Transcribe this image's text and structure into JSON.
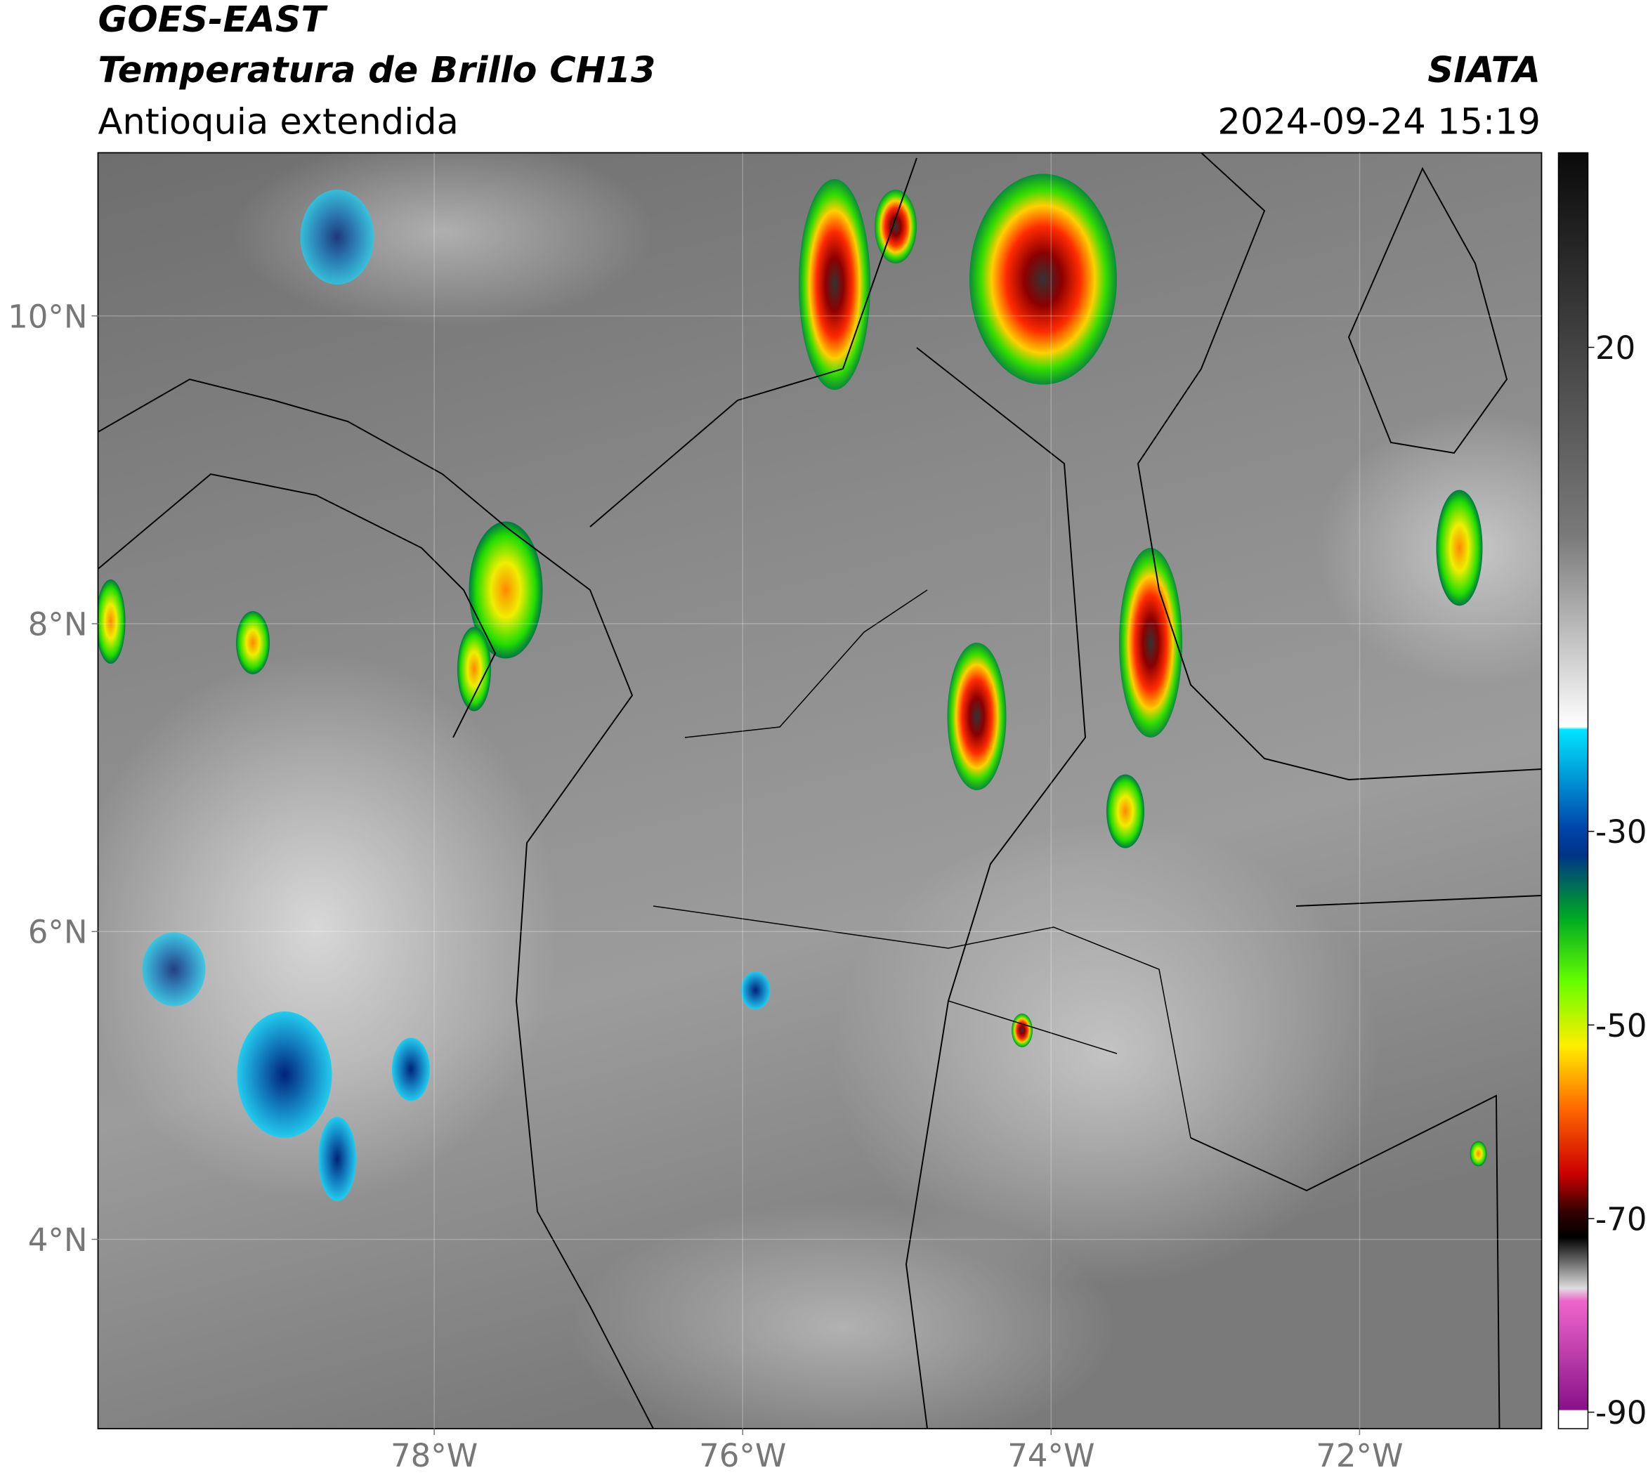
{
  "header": {
    "title": "GOES-EAST",
    "subtitle": "Temperatura de Brillo CH13",
    "region": "Antioquia extendida",
    "source": "SIATA",
    "datetime": "2024-09-24 15:19"
  },
  "map": {
    "xlim": [
      -80.18,
      -70.82
    ],
    "ylim": [
      2.77,
      11.06
    ],
    "xticks": [
      {
        "value": -78,
        "label": "78°W"
      },
      {
        "value": -76,
        "label": "76°W"
      },
      {
        "value": -74,
        "label": "74°W"
      },
      {
        "value": -72,
        "label": "72°W"
      }
    ],
    "yticks": [
      {
        "value": 10,
        "label": "10°N"
      },
      {
        "value": 8,
        "label": "8°N"
      },
      {
        "value": 6,
        "label": "6°N"
      },
      {
        "value": 4,
        "label": "4°N"
      }
    ],
    "grid": true
  },
  "colorbar": {
    "clim": [
      -91.7,
      40.1
    ],
    "ticks": [
      20,
      -30,
      -50,
      -70,
      -90
    ]
  }
}
